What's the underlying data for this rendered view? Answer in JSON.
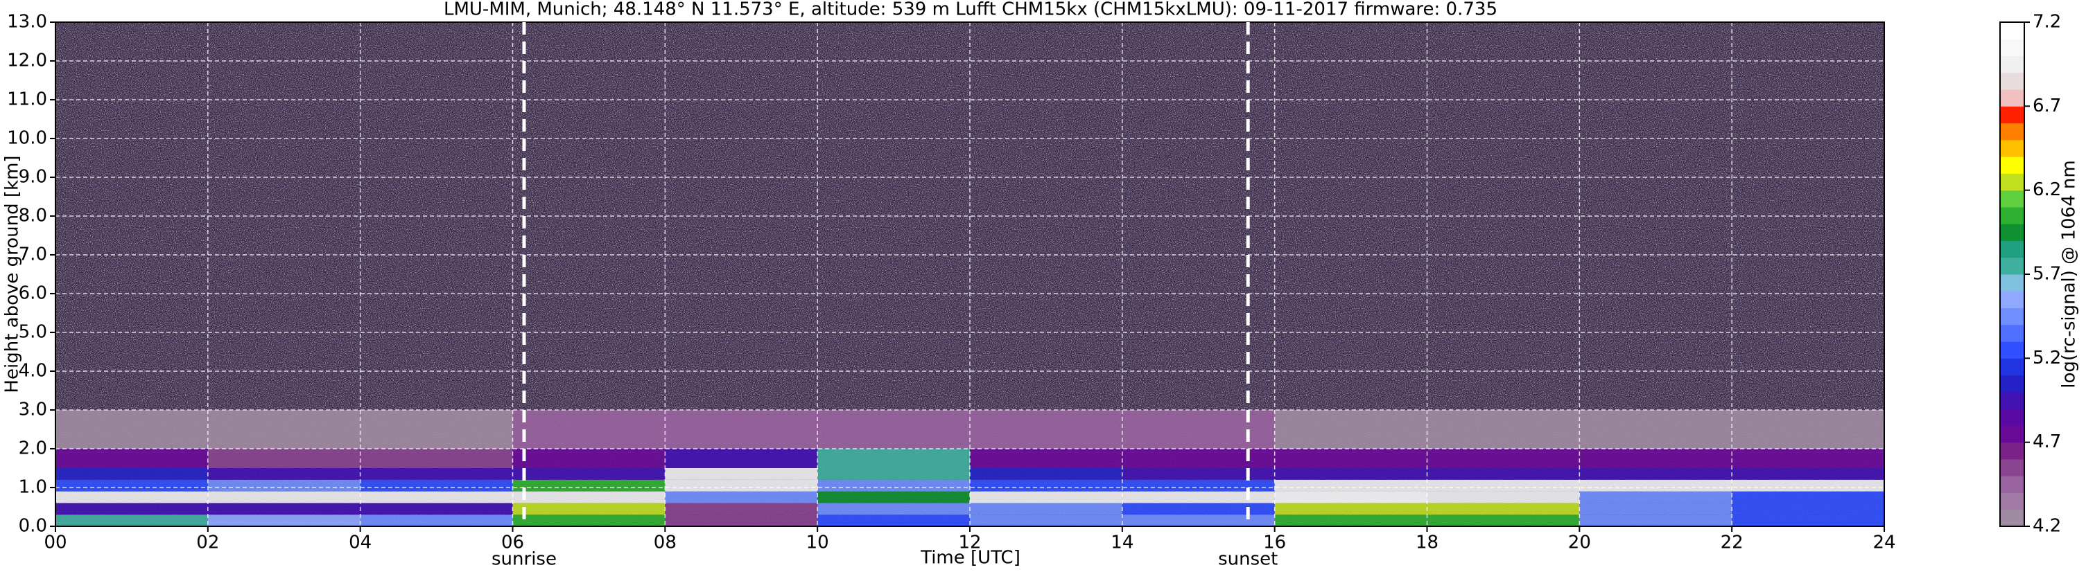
{
  "chart_data": {
    "type": "heatmap",
    "title": "LMU-MIM, Munich; 48.148° N 11.573° E, altitude: 539 m    Lufft CHM15kx (CHM15kxLMU): 09-11-2017    firmware: 0.735",
    "xlabel": "Time [UTC]",
    "ylabel": "Height above ground [km]",
    "xlim": [
      0,
      24
    ],
    "ylim": [
      0,
      13
    ],
    "xticks": [
      {
        "value": 0,
        "label": "00"
      },
      {
        "value": 2,
        "label": "02"
      },
      {
        "value": 4,
        "label": "04"
      },
      {
        "value": 6,
        "label": "06"
      },
      {
        "value": 8,
        "label": "08"
      },
      10,
      12,
      14,
      16,
      18,
      20,
      22,
      24
    ],
    "yticks": [
      {
        "value": 0,
        "label": "0.0"
      },
      {
        "value": 1,
        "label": "1.0"
      },
      {
        "value": 2,
        "label": "2.0"
      },
      {
        "value": 3,
        "label": "3.0"
      },
      {
        "value": 4,
        "label": "4.0"
      },
      {
        "value": 5,
        "label": "5.0"
      },
      {
        "value": 6,
        "label": "6.0"
      },
      {
        "value": 7,
        "label": "7.0"
      },
      {
        "value": 8,
        "label": "8.0"
      },
      {
        "value": 9,
        "label": "9.0"
      },
      {
        "value": 10,
        "label": "10.0"
      },
      {
        "value": 11,
        "label": "11.0"
      },
      {
        "value": 12,
        "label": "12.0"
      },
      {
        "value": 13,
        "label": "13.0"
      }
    ],
    "grid": true,
    "x_edges": [
      0,
      2,
      4,
      6,
      8,
      10,
      12,
      14,
      16,
      18,
      20,
      22,
      24
    ],
    "y_edges": [
      0,
      0.3,
      0.6,
      0.9,
      1.2,
      1.5,
      2,
      3
    ],
    "z": [
      [
        5.8,
        5.6,
        5.5,
        6.0,
        4.6,
        5.3,
        5.4,
        5.5,
        6.1,
        6.0,
        5.4,
        5.3
      ],
      [
        5.0,
        5.0,
        4.9,
        6.3,
        4.6,
        5.5,
        5.4,
        5.3,
        6.3,
        6.2,
        5.5,
        5.3
      ],
      [
        7.0,
        7.0,
        6.9,
        7.0,
        5.5,
        5.9,
        6.9,
        6.9,
        7.1,
        7.0,
        5.4,
        5.3
      ],
      [
        5.3,
        5.4,
        5.2,
        6.0,
        6.9,
        5.5,
        5.3,
        5.2,
        7.0,
        7.0,
        7.0,
        7.0
      ],
      [
        5.1,
        5.0,
        4.9,
        5.0,
        7.0,
        5.7,
        5.1,
        5.0,
        5.0,
        5.0,
        5.0,
        5.0
      ],
      [
        4.7,
        4.6,
        4.6,
        4.8,
        5.0,
        5.8,
        4.8,
        4.7,
        4.8,
        4.8,
        4.8,
        4.8
      ],
      [
        4.3,
        4.3,
        4.3,
        4.4,
        4.4,
        4.5,
        4.4,
        4.4,
        4.3,
        4.3,
        4.3,
        4.3
      ]
    ],
    "clim": [
      4.2,
      7.2
    ],
    "cticks": [
      4.2,
      4.7,
      5.2,
      5.7,
      6.2,
      6.7,
      7.2
    ],
    "clabel": "log(rc-signal) @ 1064 nm",
    "colors": [
      "#a08ca2",
      "#a07aa4",
      "#9a64a0",
      "#8a4490",
      "#7a2288",
      "#6a0a98",
      "#5a0aa2",
      "#4212b2",
      "#2422c6",
      "#2034e2",
      "#3050ff",
      "#5070ff",
      "#7090ff",
      "#90a8ff",
      "#80c0e0",
      "#40b0a0",
      "#20a080",
      "#109030",
      "#30b030",
      "#60d040",
      "#c0e020",
      "#ffff00",
      "#ffc000",
      "#ff8000",
      "#ff2000",
      "#f0c0c0",
      "#e8dcdc",
      "#f0f0f0",
      "#f8f8f8",
      "#ffffff"
    ],
    "annotations": [
      {
        "text": "sunrise",
        "x": 6.15
      },
      {
        "text": "sunset",
        "x": 15.65
      }
    ]
  }
}
